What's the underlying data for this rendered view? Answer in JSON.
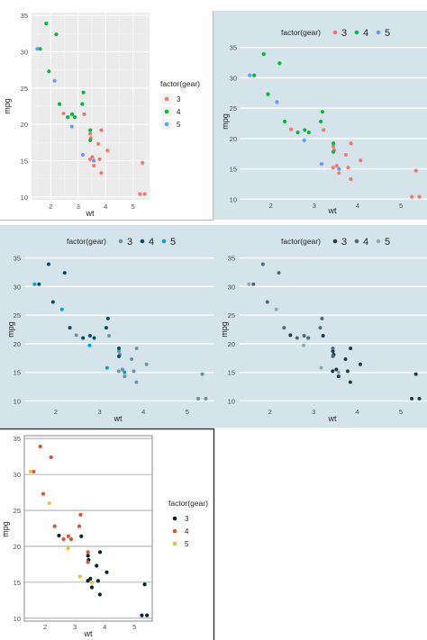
{
  "chart_data": [
    {
      "type": "scatter",
      "theme": "ggplot-gray",
      "xlabel": "wt",
      "ylabel": "mpg",
      "xlim": [
        1.3,
        5.6
      ],
      "ylim": [
        9.6,
        35.4
      ],
      "x_ticks": [
        "2",
        "3",
        "4",
        "5"
      ],
      "y_ticks": [
        "10",
        "15",
        "20",
        "25",
        "30",
        "35"
      ],
      "grid": true,
      "legend_placement": "right",
      "legend_title": "factor(gear)",
      "legend_labels": [
        "3",
        "4",
        "5"
      ],
      "colors": {
        "3": "#f8766d",
        "4": "#00ba38",
        "5": "#619cff"
      }
    },
    {
      "type": "scatter",
      "theme": "economist",
      "xlabel": "wt",
      "ylabel": "mpg",
      "xlim": [
        1.3,
        5.6
      ],
      "ylim": [
        9.6,
        35.4
      ],
      "x_ticks": [
        "2",
        "3",
        "4",
        "5"
      ],
      "y_ticks": [
        "10",
        "15",
        "20",
        "25",
        "30",
        "35"
      ],
      "grid": true,
      "legend_placement": "top",
      "legend_title": "factor(gear)",
      "legend_labels": [
        "3",
        "4",
        "5"
      ],
      "colors": {
        "3": "#f8766d",
        "4": "#00ba38",
        "5": "#619cff"
      }
    },
    {
      "type": "scatter",
      "theme": "economist",
      "xlabel": "wt",
      "ylabel": "mpg",
      "xlim": [
        1.3,
        5.6
      ],
      "ylim": [
        9.6,
        35.4
      ],
      "x_ticks": [
        "2",
        "3",
        "4",
        "5"
      ],
      "y_ticks": [
        "10",
        "15",
        "20",
        "25",
        "30",
        "35"
      ],
      "grid": true,
      "legend_placement": "top",
      "legend_title": "factor(gear)",
      "legend_labels": [
        "3",
        "4",
        "5"
      ],
      "colors": {
        "3": "#6794a7",
        "4": "#014d64",
        "5": "#01a2d9"
      }
    },
    {
      "type": "scatter",
      "theme": "economist",
      "xlabel": "wt",
      "ylabel": "mpg",
      "xlim": [
        1.3,
        5.6
      ],
      "ylim": [
        9.6,
        35.4
      ],
      "x_ticks": [
        "2",
        "3",
        "4",
        "5"
      ],
      "y_ticks": [
        "10",
        "15",
        "20",
        "25",
        "30",
        "35"
      ],
      "grid": true,
      "legend_placement": "top",
      "legend_title": "factor(gear)",
      "legend_labels": [
        "3",
        "4",
        "5"
      ],
      "colors": {
        "3": "#1d3a4e",
        "4": "#4e6a7c",
        "5": "#93a6b3"
      }
    },
    {
      "type": "scatter",
      "theme": "few",
      "xlabel": "wt",
      "ylabel": "mpg",
      "xlim": [
        1.3,
        5.6
      ],
      "ylim": [
        9.6,
        35.4
      ],
      "x_ticks": [
        "2",
        "3",
        "4",
        "5"
      ],
      "y_ticks": [
        "10",
        "15",
        "20",
        "25",
        "30",
        "35"
      ],
      "grid": true,
      "legend_placement": "right",
      "legend_title": "factor(gear)",
      "legend_labels": [
        "3",
        "4",
        "5"
      ],
      "colors": {
        "3": "#0b2230",
        "4": "#d9532f",
        "5": "#f2c12e"
      }
    }
  ],
  "mtcars_points": [
    {
      "wt": 2.62,
      "mpg": 21.0,
      "gear": "4"
    },
    {
      "wt": 2.875,
      "mpg": 21.0,
      "gear": "4"
    },
    {
      "wt": 2.32,
      "mpg": 22.8,
      "gear": "4"
    },
    {
      "wt": 3.215,
      "mpg": 21.4,
      "gear": "3"
    },
    {
      "wt": 3.44,
      "mpg": 18.7,
      "gear": "3"
    },
    {
      "wt": 3.46,
      "mpg": 18.1,
      "gear": "3"
    },
    {
      "wt": 3.57,
      "mpg": 14.3,
      "gear": "3"
    },
    {
      "wt": 3.19,
      "mpg": 24.4,
      "gear": "4"
    },
    {
      "wt": 3.15,
      "mpg": 22.8,
      "gear": "4"
    },
    {
      "wt": 3.44,
      "mpg": 19.2,
      "gear": "4"
    },
    {
      "wt": 3.44,
      "mpg": 17.8,
      "gear": "4"
    },
    {
      "wt": 4.07,
      "mpg": 16.4,
      "gear": "3"
    },
    {
      "wt": 3.73,
      "mpg": 17.3,
      "gear": "3"
    },
    {
      "wt": 3.78,
      "mpg": 15.2,
      "gear": "3"
    },
    {
      "wt": 5.25,
      "mpg": 10.4,
      "gear": "3"
    },
    {
      "wt": 5.424,
      "mpg": 10.4,
      "gear": "3"
    },
    {
      "wt": 5.345,
      "mpg": 14.7,
      "gear": "3"
    },
    {
      "wt": 2.2,
      "mpg": 32.4,
      "gear": "4"
    },
    {
      "wt": 1.615,
      "mpg": 30.4,
      "gear": "4"
    },
    {
      "wt": 1.835,
      "mpg": 33.9,
      "gear": "4"
    },
    {
      "wt": 2.465,
      "mpg": 21.5,
      "gear": "3"
    },
    {
      "wt": 3.52,
      "mpg": 15.5,
      "gear": "3"
    },
    {
      "wt": 3.435,
      "mpg": 15.2,
      "gear": "3"
    },
    {
      "wt": 3.84,
      "mpg": 13.3,
      "gear": "3"
    },
    {
      "wt": 3.845,
      "mpg": 19.2,
      "gear": "3"
    },
    {
      "wt": 1.935,
      "mpg": 27.3,
      "gear": "4"
    },
    {
      "wt": 2.14,
      "mpg": 26.0,
      "gear": "5"
    },
    {
      "wt": 1.513,
      "mpg": 30.4,
      "gear": "5"
    },
    {
      "wt": 3.17,
      "mpg": 15.8,
      "gear": "5"
    },
    {
      "wt": 2.77,
      "mpg": 19.7,
      "gear": "5"
    },
    {
      "wt": 3.57,
      "mpg": 15.0,
      "gear": "5"
    },
    {
      "wt": 2.78,
      "mpg": 21.4,
      "gear": "4"
    }
  ]
}
